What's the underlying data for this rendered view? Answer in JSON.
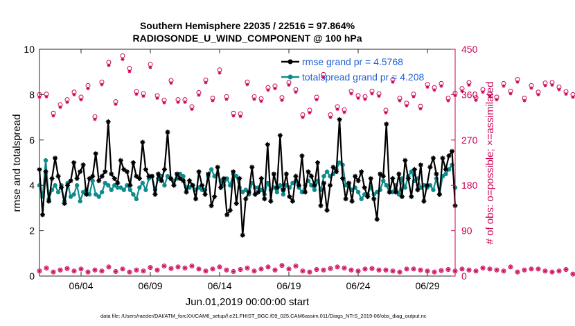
{
  "chart_data": {
    "type": "line",
    "title_line1": "Southern Hemisphere 22035 / 22516 = 97.864%",
    "title_line2": "RADIOSONDE_U_WIND_COMPONENT @ 100 hPa",
    "xlabel": "Jun.01,2019 00:00:00 start",
    "ylabel_left": "rmse and totalspread",
    "ylabel_right": "# of obs: o=possible; ×=assimilated",
    "x_start_day": 1,
    "x_end_day": 31,
    "x_ticks": [
      {
        "day": 4,
        "label": "06/04"
      },
      {
        "day": 9,
        "label": "06/09"
      },
      {
        "day": 14,
        "label": "06/14"
      },
      {
        "day": 19,
        "label": "06/19"
      },
      {
        "day": 24,
        "label": "06/24"
      },
      {
        "day": 29,
        "label": "06/29"
      }
    ],
    "ylim_left": [
      0,
      10
    ],
    "yticks_left": [
      "0",
      "2",
      "4",
      "6",
      "8",
      "10"
    ],
    "ylim_right": [
      0,
      450
    ],
    "yticks_right": [
      "0",
      "90",
      "180",
      "270",
      "360",
      "450"
    ],
    "colors": {
      "rmse": "#000000",
      "spread": "#0f8b8d",
      "obs": "#cc0055",
      "legend_text": "#1f5fd6",
      "right_axis": "#cc0055"
    },
    "legend": [
      {
        "name": "rmse grand pr = 4.5768",
        "color": "#000000"
      },
      {
        "name": "totalspread grand pr = 4.208",
        "color": "#0f8b8d"
      }
    ],
    "series": [
      {
        "name": "rmse",
        "values": [
          4.7,
          2.7,
          4.6,
          3.3,
          4.3,
          5.2,
          4.4,
          3.9,
          3.2,
          4.0,
          4.2,
          5.0,
          4.3,
          4.6,
          4.9,
          3.6,
          4.3,
          4.4,
          5.4,
          4.2,
          4.4,
          4.6,
          6.8,
          4.5,
          4.3,
          4.1,
          5.1,
          4.7,
          4.6,
          4.0,
          5.0,
          4.4,
          4.3,
          5.9,
          4.7,
          4.4,
          4.4,
          3.6,
          4.5,
          4.2,
          4.7,
          6.35,
          4.3,
          4.0,
          4.5,
          4.3,
          4.2,
          3.7,
          4.2,
          4.0,
          3.4,
          4.6,
          4.0,
          3.6,
          4.5,
          3.1,
          3.5,
          4.8,
          3.9,
          4.3,
          2.7,
          2.9,
          4.6,
          3.2,
          4.3,
          1.8,
          3.4,
          3.7,
          4.8,
          3.6,
          3.7,
          4.3,
          3.4,
          5.8,
          3.3,
          4.5,
          3.9,
          6.2,
          3.8,
          4.5,
          3.5,
          3.3,
          4.4,
          4.0,
          5.3,
          3.7,
          4.6,
          4.4,
          4.0,
          5.0,
          3.1,
          4.1,
          2.9,
          4.0,
          4.8,
          4.6,
          6.9,
          4.3,
          3.4,
          4.1,
          3.3,
          4.4,
          4.2,
          4.6,
          3.9,
          3.5,
          4.3,
          3.4,
          2.5,
          4.5,
          4.4,
          6.7,
          3.7,
          4.3,
          3.7,
          4.5,
          3.5,
          5.1,
          4.3,
          3.5,
          4.7,
          3.8,
          4.9,
          3.3,
          4.0,
          4.8,
          5.2,
          4.5,
          3.6,
          5.2,
          4.7,
          5.3,
          5.5,
          3.1
        ]
      },
      {
        "name": "totalspread",
        "values": [
          4.0,
          3.5,
          5.1,
          3.4,
          3.8,
          4.0,
          3.7,
          4.0,
          3.3,
          4.1,
          3.5,
          3.6,
          4.0,
          3.3,
          3.7,
          3.8,
          3.6,
          4.2,
          3.6,
          3.5,
          3.7,
          4.1,
          4.0,
          3.8,
          4.0,
          3.9,
          3.9,
          3.8,
          4.0,
          3.8,
          3.6,
          3.4,
          3.9,
          4.1,
          3.8,
          4.3,
          4.4,
          3.8,
          4.3,
          4.4,
          4.0,
          4.4,
          4.3,
          4.2,
          4.3,
          4.5,
          4.4,
          3.9,
          3.9,
          4.0,
          3.8,
          3.9,
          3.8,
          3.8,
          4.4,
          4.7,
          4.4,
          4.5,
          4.2,
          4.0,
          4.3,
          4.0,
          4.5,
          4.4,
          3.9,
          3.7,
          3.8,
          3.6,
          4.1,
          3.9,
          3.9,
          3.8,
          3.6,
          4.1,
          3.8,
          3.9,
          3.7,
          4.0,
          3.6,
          4.0,
          3.9,
          4.1,
          4.2,
          3.9,
          3.7,
          4.0,
          4.2,
          4.0,
          3.8,
          4.2,
          3.8,
          4.4,
          4.6,
          4.4,
          4.5,
          4.7,
          5.0,
          4.9,
          4.0,
          4.0,
          3.8,
          3.9,
          3.7,
          3.4,
          3.6,
          3.6,
          3.9,
          3.6,
          3.7,
          3.8,
          4.2,
          4.0,
          3.7,
          3.7,
          4.0,
          3.6,
          4.3,
          3.9,
          4.4,
          4.6,
          4.2,
          4.3,
          3.9,
          4.0,
          3.9,
          4.0,
          3.8,
          4.3,
          3.6,
          4.4,
          4.5,
          4.7,
          4.9,
          3.9
        ]
      },
      {
        "name": "obs_possible",
        "day_step": 0.5,
        "values": [
          360,
          361,
          323,
          340,
          350,
          365,
          355,
          378,
          316,
          385,
          424,
          346,
          437,
          412,
          366,
          362,
          420,
          358,
          349,
          388,
          350,
          350,
          336,
          364,
          389,
          353,
          409,
          356,
          323,
          322,
          385,
          356,
          352,
          374,
          377,
          354,
          384,
          370,
          320,
          329,
          355,
          400,
          320,
          336,
          330,
          367,
          358,
          356,
          367,
          362,
          329,
          390,
          353,
          343,
          361,
          337,
          380,
          374,
          382,
          353,
          363,
          372,
          384,
          354,
          370,
          362,
          355,
          382,
          367,
          390,
          353,
          378,
          365,
          383,
          384,
          375,
          366,
          360
        ]
      },
      {
        "name": "obs_assimilated",
        "day_step": 0.5,
        "values": [
          355,
          356,
          318,
          335,
          345,
          360,
          350,
          372,
          311,
          380,
          418,
          341,
          430,
          406,
          361,
          357,
          414,
          353,
          344,
          383,
          345,
          345,
          331,
          359,
          384,
          348,
          403,
          351,
          318,
          317,
          380,
          351,
          347,
          369,
          372,
          349,
          379,
          365,
          315,
          324,
          350,
          394,
          315,
          331,
          325,
          362,
          353,
          351,
          362,
          357,
          324,
          385,
          348,
          338,
          356,
          332,
          375,
          369,
          377,
          348,
          358,
          367,
          379,
          349,
          365,
          357,
          350,
          377,
          362,
          385,
          348,
          373,
          360,
          378,
          379,
          370,
          361,
          355
        ]
      },
      {
        "name": "obs_low",
        "day_step": 0.5,
        "values": [
          10,
          16,
          8,
          12,
          15,
          10,
          14,
          8,
          12,
          10,
          18,
          9,
          14,
          8,
          12,
          10,
          17,
          12,
          20,
          15,
          18,
          16,
          20,
          14,
          10,
          14,
          18,
          12,
          9,
          13,
          16,
          10,
          14,
          18,
          12,
          21,
          14,
          20,
          10,
          8,
          13,
          12,
          15,
          18,
          16,
          12,
          10,
          14,
          15,
          12,
          12,
          10,
          8,
          14,
          14,
          12,
          10,
          8,
          11,
          13,
          10,
          14,
          12,
          10,
          16,
          14,
          12,
          10,
          18,
          8,
          12,
          14,
          14,
          10,
          8,
          10,
          13,
          4
        ]
      }
    ]
  },
  "footer": "data file: /Users/raeder/DAI/ATM_forcXX/CAM6_setup/f.e21.FHIST_BGC.f09_025.CAM6assim.011/Diags_NTrS_2019-06/obs_diag_output.nc"
}
